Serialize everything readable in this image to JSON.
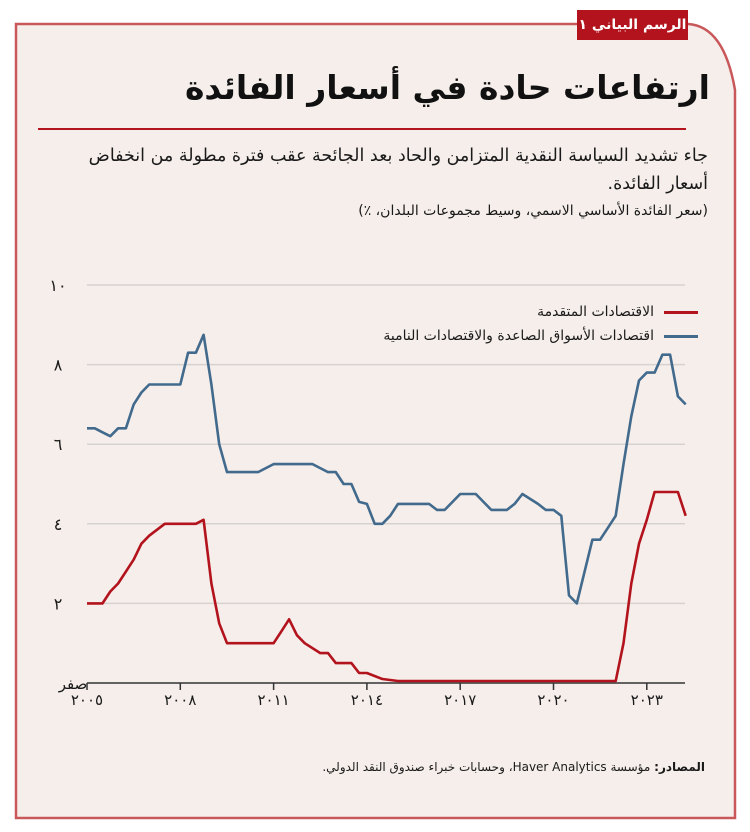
{
  "figure": {
    "tag": "الرسم البياني ١",
    "title": "ارتفاعات حادة في أسعار الفائدة",
    "subtitle": "جاء تشديد السياسة النقدية المتزامن والحاد بعد الجائحة عقب فترة مطولة من انخفاض أسعار الفائدة.",
    "unit_note": "(سعر الفائدة الأساسي الاسمي، وسيط مجموعات البلدان، ٪)",
    "source_label": "المصادر:",
    "source_text": "مؤسسة Haver Analytics، وحسابات خبراء صندوق النقد الدولي.",
    "colors": {
      "background": "#f5eeeb",
      "border": "#c9585a",
      "accent_red": "#b3131c",
      "series_advanced": "#b3131c",
      "series_emerging": "#426a8c",
      "grid": "#d6d2d0",
      "axis": "#333333"
    }
  },
  "chart_data": {
    "type": "line",
    "title": "ارتفاعات حادة في أسعار الفائدة",
    "xlabel": "",
    "ylabel": "سعر الفائدة الأساسي الاسمي، وسيط مجموعات البلدان، ٪",
    "ylim": [
      0,
      10
    ],
    "xlim": [
      2005,
      2024.25
    ],
    "y_ticks": [
      {
        "value": 0,
        "label": "صفر"
      },
      {
        "value": 2,
        "label": "٢"
      },
      {
        "value": 4,
        "label": "٤"
      },
      {
        "value": 6,
        "label": "٦"
      },
      {
        "value": 8,
        "label": "٨"
      },
      {
        "value": 10,
        "label": "١٠"
      }
    ],
    "x_ticks": [
      {
        "value": 2005,
        "label": "٢٠٠٥"
      },
      {
        "value": 2008,
        "label": "٢٠٠٨"
      },
      {
        "value": 2011,
        "label": "٢٠١١"
      },
      {
        "value": 2014,
        "label": "٢٠١٤"
      },
      {
        "value": 2017,
        "label": "٢٠١٧"
      },
      {
        "value": 2020,
        "label": "٢٠٢٠"
      },
      {
        "value": 2023,
        "label": "٢٠٢٣"
      }
    ],
    "grid": true,
    "legend_position": "top-right",
    "series": [
      {
        "name": "الاقتصادات المتقدمة",
        "color": "#b3131c",
        "x": [
          2005.0,
          2005.5,
          2005.75,
          2006.0,
          2006.5,
          2006.75,
          2007.0,
          2007.5,
          2008.0,
          2008.5,
          2008.75,
          2009.0,
          2009.25,
          2009.5,
          2010.0,
          2010.5,
          2011.0,
          2011.25,
          2011.5,
          2011.75,
          2012.0,
          2012.5,
          2012.75,
          2013.0,
          2013.5,
          2013.75,
          2014.0,
          2014.5,
          2015.0,
          2016.0,
          2017.0,
          2018.0,
          2019.0,
          2020.0,
          2021.0,
          2022.0,
          2022.25,
          2022.5,
          2022.75,
          2023.0,
          2023.25,
          2023.5,
          2024.0,
          2024.25
        ],
        "values": [
          2.0,
          2.0,
          2.3,
          2.5,
          3.1,
          3.5,
          3.7,
          4.0,
          4.0,
          4.0,
          4.1,
          2.5,
          1.5,
          1.0,
          1.0,
          1.0,
          1.0,
          1.3,
          1.6,
          1.2,
          1.0,
          0.75,
          0.75,
          0.5,
          0.5,
          0.25,
          0.25,
          0.1,
          0.05,
          0.05,
          0.05,
          0.05,
          0.05,
          0.05,
          0.05,
          0.05,
          1.0,
          2.5,
          3.5,
          4.1,
          4.8,
          4.8,
          4.8,
          4.2
        ]
      },
      {
        "name": "اقتصادات الأسواق الصاعدة والاقتصادات النامية",
        "color": "#426a8c",
        "x": [
          2005.0,
          2005.25,
          2005.5,
          2005.75,
          2006.0,
          2006.25,
          2006.5,
          2006.75,
          2007.0,
          2007.5,
          2008.0,
          2008.25,
          2008.5,
          2008.75,
          2009.0,
          2009.25,
          2009.5,
          2010.0,
          2010.5,
          2011.0,
          2011.5,
          2012.0,
          2012.25,
          2012.75,
          2013.0,
          2013.25,
          2013.5,
          2013.75,
          2014.0,
          2014.25,
          2014.5,
          2014.75,
          2015.0,
          2015.5,
          2016.0,
          2016.25,
          2016.5,
          2017.0,
          2017.25,
          2017.5,
          2018.0,
          2018.5,
          2018.75,
          2019.0,
          2019.5,
          2019.75,
          2020.0,
          2020.25,
          2020.5,
          2020.75,
          2021.25,
          2021.5,
          2021.75,
          2022.0,
          2022.25,
          2022.5,
          2022.75,
          2023.0,
          2023.25,
          2023.5,
          2023.75,
          2024.0,
          2024.25
        ],
        "values": [
          6.4,
          6.4,
          6.3,
          6.2,
          6.4,
          6.4,
          7.0,
          7.3,
          7.5,
          7.5,
          7.5,
          8.3,
          8.3,
          8.75,
          7.5,
          6.0,
          5.3,
          5.3,
          5.3,
          5.5,
          5.5,
          5.5,
          5.5,
          5.3,
          5.3,
          5.0,
          5.0,
          4.55,
          4.5,
          4.0,
          4.0,
          4.2,
          4.5,
          4.5,
          4.5,
          4.35,
          4.35,
          4.75,
          4.75,
          4.75,
          4.35,
          4.35,
          4.5,
          4.75,
          4.5,
          4.35,
          4.35,
          4.2,
          2.2,
          2.0,
          3.6,
          3.6,
          3.9,
          4.2,
          5.5,
          6.7,
          7.6,
          7.8,
          7.8,
          8.25,
          8.25,
          7.2,
          7.0
        ]
      }
    ]
  }
}
